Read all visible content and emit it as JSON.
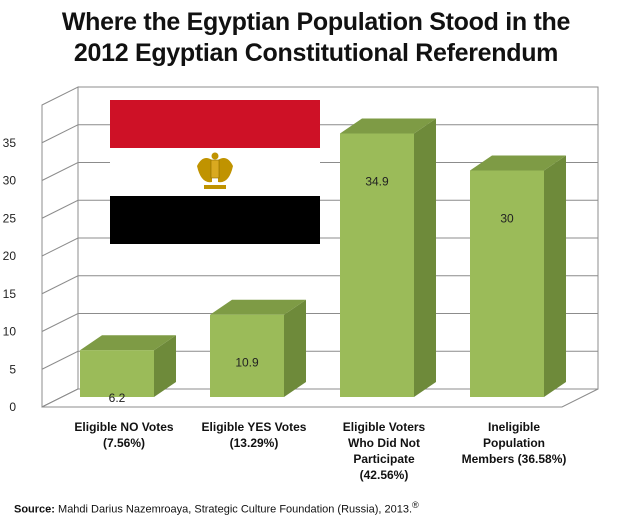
{
  "chart_data": {
    "type": "bar",
    "title_lines": [
      "Where the Egyptian Population Stood in the",
      "2012 Egyptian Constitutional Referendum"
    ],
    "categories": [
      [
        "Eligible NO Votes",
        "(7.56%)"
      ],
      [
        "Eligible YES Votes",
        "(13.29%)"
      ],
      [
        "Eligible Voters",
        "Who Did Not",
        "Participate",
        "(42.56%)"
      ],
      [
        "Ineligible",
        "Population",
        "Members (36.58%)"
      ]
    ],
    "values": [
      6.2,
      10.9,
      34.9,
      30
    ],
    "data_labels": [
      "6.2",
      "10.9",
      "34.9",
      "30"
    ],
    "y_ticks": [
      "0",
      "5",
      "10",
      "15",
      "20",
      "25",
      "30",
      "35"
    ],
    "ylim": [
      0,
      40
    ],
    "grid": true,
    "style": "3d",
    "bar_color_front": "#9BBB59",
    "bar_color_side": "#6E8A3A",
    "bar_color_top": "#7E9B45"
  },
  "flag": {
    "colors": [
      "#CE1126",
      "#FFFFFF",
      "#000000"
    ],
    "emblem": "eagle-of-saladin"
  },
  "source": {
    "label": "Source:",
    "text": " Mahdi Darius Nazemroaya, Strategic Culture Foundation (Russia), 2013.",
    "mark": "®"
  }
}
